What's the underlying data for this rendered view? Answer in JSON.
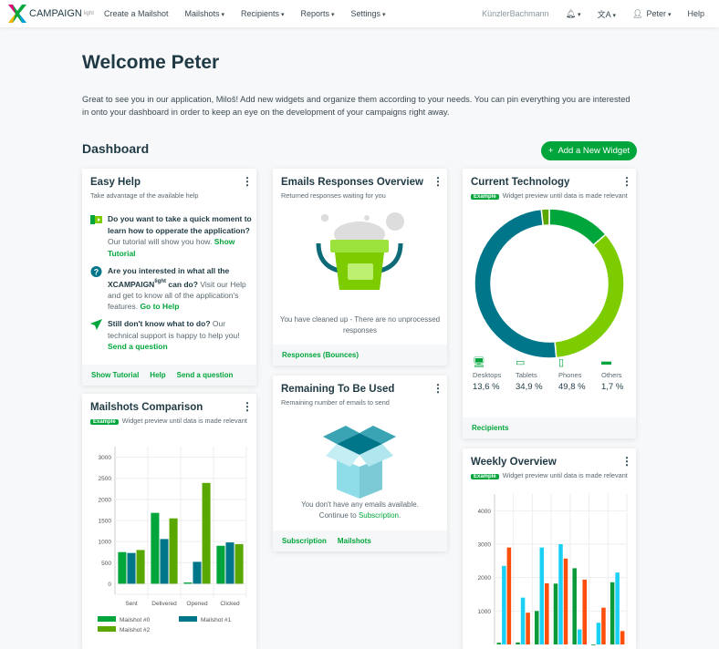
{
  "nav": {
    "logo": "CAMPAIGN",
    "logo_sup": "light",
    "items": [
      {
        "label": "Create a Mailshot",
        "dropdown": false
      },
      {
        "label": "Mailshots",
        "dropdown": true
      },
      {
        "label": "Recipients",
        "dropdown": true
      },
      {
        "label": "Reports",
        "dropdown": true
      },
      {
        "label": "Settings",
        "dropdown": true
      }
    ],
    "account": "KünzlerBachmann",
    "user": "Peter",
    "help": "Help"
  },
  "page": {
    "title": "Welcome Peter",
    "intro": "Great to see you in our application, Miloš! Add new widgets and organize them according to your needs. You can pin everything you are interested in onto your dashboard in order to keep an eye on the development of your campaigns right away.",
    "dashboard": "Dashboard",
    "add_widget": "Add a New Widget"
  },
  "easy_help": {
    "title": "Easy Help",
    "subtitle": "Take advantage of the available help",
    "items": [
      {
        "q": "Do you want to take a quick moment to learn how to opperate the application?",
        "t": " Our tutorial will show you how. ",
        "link": "Show Tutorial"
      },
      {
        "q": "Are you interested in what all the XCAMPAIGN",
        "sup": "light",
        "q2": " can do?",
        "t": " Visit our Help and get to know all of the application's features. ",
        "link": "Go to Help"
      },
      {
        "q": "Still don't know what to do?",
        "t": " Our technical support is happy to help you! ",
        "link": "Send a question"
      }
    ],
    "footer": [
      "Show Tutorial",
      "Help",
      "Send a question"
    ]
  },
  "responses": {
    "title": "Emails Responses Overview",
    "subtitle": "Returned responses waiting for you",
    "message": "You have cleaned up - There are no unprocessed responses",
    "footer": [
      "Responses (Bounces)"
    ]
  },
  "remaining": {
    "title": "Remaining To Be Used",
    "subtitle": "Remaining number of emails to send",
    "message": "You don't have any emails available.",
    "message2": "Continue to ",
    "link": "Subscription",
    "period": ".",
    "footer": [
      "Subscription",
      "Mailshots"
    ]
  },
  "example_badge": "Example",
  "preview_note": "Widget preview until data is made relevant",
  "technology": {
    "title": "Current Technology",
    "items": [
      {
        "label": "Desktops",
        "value": "13,6 %",
        "color": "#00a63c"
      },
      {
        "label": "Tablets",
        "value": "34,9 %",
        "color": "#7ccc00"
      },
      {
        "label": "Phones",
        "value": "49,8 %",
        "color": "#00768a"
      },
      {
        "label": "Others",
        "value": "1,7 %",
        "color": "#5aa700"
      }
    ],
    "footer": [
      "Recipients"
    ]
  },
  "mailshots": {
    "title": "Mailshots Comparison"
  },
  "weekly": {
    "title": "Weekly Overview"
  },
  "chart_data": [
    {
      "type": "pie",
      "values": [
        13.6,
        34.9,
        49.8,
        1.7
      ],
      "categories": [
        "Desktops",
        "Tablets",
        "Phones",
        "Others"
      ]
    },
    {
      "type": "bar",
      "categories": [
        "Sent",
        "Delivered",
        "Opened",
        "Clicked"
      ],
      "ylim": [
        -250,
        3250
      ],
      "yticks": [
        0,
        500,
        1000,
        1500,
        2000,
        2500,
        3000
      ],
      "grid": true,
      "legend": "bottom-left",
      "series": [
        {
          "name": "Mailshot #0",
          "color": "#00a63c",
          "values": [
            750,
            1680,
            30,
            900
          ]
        },
        {
          "name": "Mailshot #1",
          "color": "#00768a",
          "values": [
            730,
            1060,
            520,
            980
          ]
        },
        {
          "name": "Mailshot #2",
          "color": "#5aa700",
          "values": [
            800,
            1550,
            2390,
            940
          ]
        }
      ]
    },
    {
      "type": "bar",
      "categories": [
        "",
        "",
        "",
        "",
        "",
        "",
        ""
      ],
      "ylim": [
        0,
        4500
      ],
      "yticks": [
        1000,
        2000,
        3000,
        4000
      ],
      "grid": true,
      "series": [
        {
          "color": "#0a9a3a",
          "values": [
            50,
            60,
            1000,
            1820,
            2280,
            0,
            1860
          ]
        },
        {
          "color": "#1ad1f5",
          "values": [
            2350,
            1400,
            2900,
            3000,
            450,
            650,
            2150
          ]
        },
        {
          "color": "#ff4d0a",
          "values": [
            2900,
            950,
            1830,
            2570,
            1940,
            1100,
            400
          ]
        }
      ]
    }
  ]
}
